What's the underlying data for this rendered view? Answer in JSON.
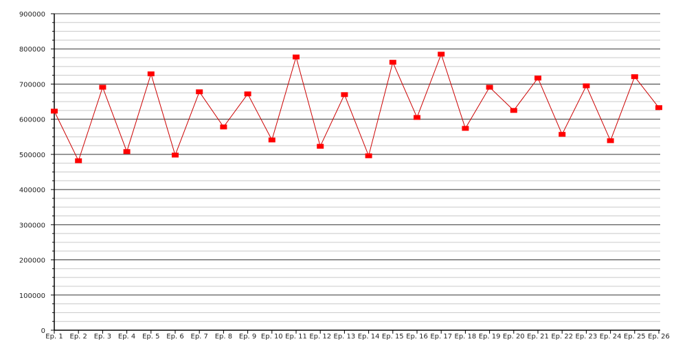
{
  "chart_data": {
    "type": "line",
    "title": "",
    "xlabel": "",
    "ylabel": "",
    "categories": [
      "Ep. 1",
      "Ep. 2",
      "Ep. 3",
      "Ep. 4",
      "Ep. 5",
      "Ep. 6",
      "Ep. 7",
      "Ep. 8",
      "Ep. 9",
      "Ep. 10",
      "Ep. 11",
      "Ep. 12",
      "Ep. 13",
      "Ep. 14",
      "Ep. 15",
      "Ep. 16",
      "Ep. 17",
      "Ep. 18",
      "Ep. 19",
      "Ep. 20",
      "Ep. 21",
      "Ep. 22",
      "Ep. 23",
      "Ep. 24",
      "Ep. 25",
      "Ep. 26"
    ],
    "series": [
      {
        "values": [
          623000,
          482000,
          691000,
          508000,
          729000,
          498000,
          678000,
          578000,
          672000,
          541000,
          777000,
          523000,
          670000,
          496000,
          762000,
          605000,
          785000,
          574000,
          691000,
          625000,
          717000,
          557000,
          695000,
          539000,
          721000,
          633000
        ],
        "color": "#ff0000"
      }
    ],
    "ylim": [
      0,
      900000
    ],
    "yticks": [
      "0",
      "100000",
      "200000",
      "300000",
      "400000",
      "500000",
      "600000",
      "700000",
      "800000",
      "900000"
    ],
    "major_step": 100000,
    "minor_step": 25000,
    "grid": true,
    "colors": {
      "line": "#cc0000",
      "marker": "#ff0000",
      "major_grid": "#333333",
      "minor_grid": "#c8c8c8"
    }
  }
}
